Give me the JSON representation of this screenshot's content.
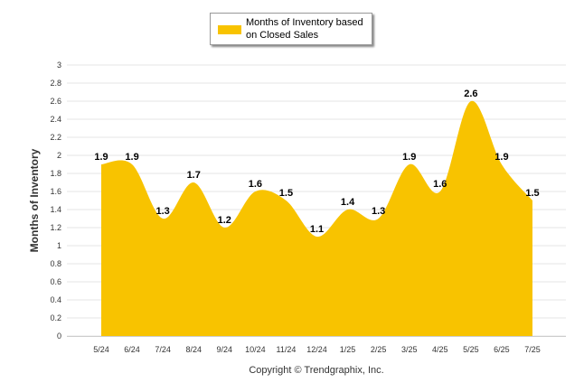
{
  "legend": {
    "label": "Months of Inventory based on Closed Sales",
    "color": "#F8C300"
  },
  "copyright": "Copyright © Trendgraphix, Inc.",
  "chart_data": {
    "type": "area",
    "categories": [
      "5/24",
      "6/24",
      "7/24",
      "8/24",
      "9/24",
      "10/24",
      "11/24",
      "12/24",
      "1/25",
      "2/25",
      "3/25",
      "4/25",
      "5/25",
      "6/25",
      "7/25"
    ],
    "series": [
      {
        "name": "Months of Inventory based on Closed Sales",
        "values": [
          1.9,
          1.9,
          1.3,
          1.7,
          1.2,
          1.6,
          1.5,
          1.1,
          1.4,
          1.3,
          1.9,
          1.6,
          2.6,
          1.9,
          1.5
        ]
      }
    ],
    "data_labels": [
      "1.9",
      "1.9",
      "1.3",
      "1.7",
      "1.2",
      "1.6",
      "1.5",
      "1.1",
      "1.4",
      "1.3",
      "1.9",
      "1.6",
      "2.6",
      "1.9",
      "1.5"
    ],
    "ylabel": "Months of Inventory",
    "ylim": [
      0,
      3
    ],
    "yticks": [
      "0",
      "0.2",
      "0.4",
      "0.6",
      "0.8",
      "1",
      "1.2",
      "1.4",
      "1.6",
      "1.8",
      "2",
      "2.2",
      "2.4",
      "2.6",
      "2.8",
      "3"
    ],
    "grid": true,
    "legend_position": "top-center",
    "color": "#F8C300"
  }
}
